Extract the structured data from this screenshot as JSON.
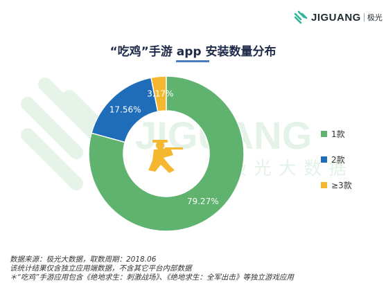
{
  "logo": {
    "brand": "JIGUANG",
    "sub": "极光"
  },
  "watermark": {
    "brand": "JIGUANG",
    "sub": "极光大数据"
  },
  "title": "“吃鸡”手游 app 安装数量分布",
  "colors": {
    "green": "#5fb36f",
    "blue": "#1f6db8",
    "yellow": "#f6b730",
    "title_bar": "#4a7cc4"
  },
  "center_icon": "soldier-silhouette-icon",
  "chart_data": {
    "type": "pie",
    "donut": true,
    "title": "“吃鸡”手游 app 安装数量分布",
    "categories": [
      "1款",
      "2款",
      "≥3款"
    ],
    "values": [
      79.27,
      17.56,
      3.17
    ],
    "labels": [
      "79.27%",
      "17.56%",
      "3.17%"
    ],
    "colors": [
      "#5fb36f",
      "#1f6db8",
      "#f6b730"
    ],
    "legend_position": "right"
  },
  "footnotes": [
    "数据来源：极光大数据，取数周期：2018.06",
    "该统计结果仅含独立应用端数据，不含其它平台内部数据",
    "＊“吃鸡”手游应用包含《绝地求生：刺激战场》、《绝地求生：全军出击》等独立游戏应用"
  ]
}
